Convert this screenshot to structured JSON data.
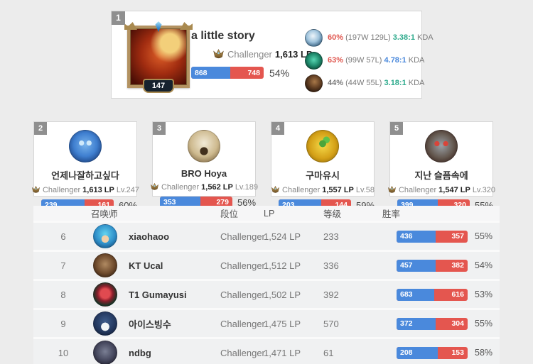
{
  "colors": {
    "win_blue": "#4a89dc",
    "loss_red": "#e4564f",
    "winrate_red": "#e0574f",
    "winrate_gray": "#7a7a7a",
    "kda_teal": "#2daa8c",
    "kda_blue": "#4a89dc"
  },
  "top_card": {
    "rank": "1",
    "summoner_level": "147",
    "name": "a little story",
    "tier": "Challenger",
    "lp": "1,613 LP",
    "wins": 868,
    "losses": 748,
    "win_rate": "54%",
    "champions": [
      {
        "icon": "champion-1-icon",
        "win_rate": "60%",
        "win_rate_color": "#e0574f",
        "record": "(197W 129L)",
        "kda": "3.38:1",
        "kda_color": "#2daa8c",
        "kda_label": "KDA"
      },
      {
        "icon": "champion-2-icon",
        "win_rate": "63%",
        "win_rate_color": "#e0574f",
        "record": "(99W 57L)",
        "kda": "4.78:1",
        "kda_color": "#4a89dc",
        "kda_label": "KDA"
      },
      {
        "icon": "champion-3-icon",
        "win_rate": "44%",
        "win_rate_color": "#7a7a7a",
        "record": "(44W 55L)",
        "kda": "3.18:1",
        "kda_color": "#2daa8c",
        "kda_label": "KDA"
      }
    ]
  },
  "cards": [
    {
      "rank": "2",
      "name": "언제나잘하고싶다",
      "tier": "Challenger",
      "lp": "1,613 LP",
      "level": "Lv.247",
      "wins": 239,
      "losses": 161,
      "win_rate": "60%"
    },
    {
      "rank": "3",
      "name": "BRO Hoya",
      "tier": "Challenger",
      "lp": "1,562 LP",
      "level": "Lv.189",
      "wins": 353,
      "losses": 279,
      "win_rate": "56%"
    },
    {
      "rank": "4",
      "name": "구마유시",
      "tier": "Challenger",
      "lp": "1,557 LP",
      "level": "Lv.58",
      "wins": 203,
      "losses": 144,
      "win_rate": "59%"
    },
    {
      "rank": "5",
      "name": "지난 슬픔속에",
      "tier": "Challenger",
      "lp": "1,547 LP",
      "level": "Lv.320",
      "wins": 399,
      "losses": 320,
      "win_rate": "55%"
    }
  ],
  "table": {
    "columns": [
      "召唤师",
      "段位",
      "LP",
      "等级",
      "胜率"
    ],
    "rows": [
      {
        "rank": "6",
        "name": "xiaohaoo",
        "tier": "Challenger",
        "lp": "1,524 LP",
        "level": "233",
        "wins": 436,
        "losses": 357,
        "win_rate": "55%"
      },
      {
        "rank": "7",
        "name": "KT Ucal",
        "tier": "Challenger",
        "lp": "1,512 LP",
        "level": "336",
        "wins": 457,
        "losses": 382,
        "win_rate": "54%"
      },
      {
        "rank": "8",
        "name": "T1 Gumayusi",
        "tier": "Challenger",
        "lp": "1,502 LP",
        "level": "392",
        "wins": 683,
        "losses": 616,
        "win_rate": "53%"
      },
      {
        "rank": "9",
        "name": "아이스빙수",
        "tier": "Challenger",
        "lp": "1,475 LP",
        "level": "570",
        "wins": 372,
        "losses": 304,
        "win_rate": "55%"
      },
      {
        "rank": "10",
        "name": "ndbg",
        "tier": "Challenger",
        "lp": "1,471 LP",
        "level": "61",
        "wins": 208,
        "losses": 153,
        "win_rate": "58%"
      }
    ]
  }
}
